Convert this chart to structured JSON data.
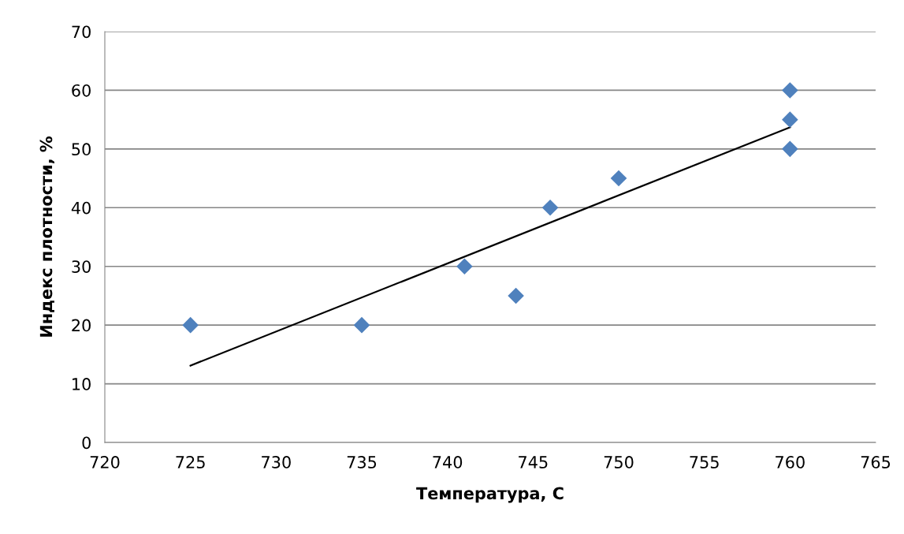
{
  "chart_data": {
    "type": "scatter",
    "xlabel": "Температура, С",
    "ylabel": "Индекс плотности, %",
    "x": [
      725,
      735,
      741,
      744,
      746,
      750,
      760,
      760,
      760
    ],
    "series": [
      {
        "type": "scatter",
        "color": "#4f81bd",
        "marker": "diamond",
        "values": [
          20,
          20,
          30,
          25,
          40,
          45,
          60,
          55,
          50
        ]
      },
      {
        "type": "line",
        "color": "#000000",
        "marker": "none",
        "line_style": "solid",
        "x": [
          725,
          760
        ],
        "values": [
          13.1,
          53.7
        ]
      }
    ],
    "xlim": [
      720,
      765
    ],
    "xticks": [
      720,
      725,
      730,
      735,
      740,
      745,
      750,
      755,
      760,
      765
    ],
    "ylim": [
      0,
      70
    ],
    "yticks": [
      0,
      10,
      20,
      30,
      40,
      50,
      60,
      70
    ],
    "grid": "y",
    "legend": false
  }
}
